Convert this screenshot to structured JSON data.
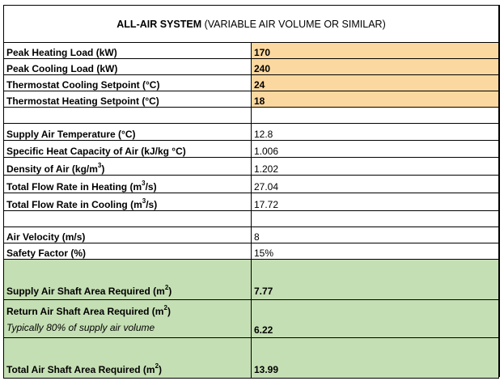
{
  "title_bold": "ALL-AIR SYSTEM",
  "title_rest": " (VARIABLE AIR VOLUME OR SIMILAR)",
  "inputs": [
    {
      "label": "Peak Heating Load (kW)",
      "value": "170"
    },
    {
      "label": "Peak Cooling Load (kW)",
      "value": "240"
    },
    {
      "label": "Thermostat Cooling Setpoint (°C)",
      "value": "24"
    },
    {
      "label": "Thermostat Heating Setpoint (°C)",
      "value": "18"
    }
  ],
  "params": [
    {
      "label": "Supply Air Temperature (°C)",
      "value": "12.8"
    },
    {
      "label": "Specific Heat Capacity of Air (kJ/kg °C)",
      "value": "1.006"
    },
    {
      "label_pre": "Density of Air (kg/m",
      "sup": "3",
      "label_post": ")",
      "value": "1.202"
    },
    {
      "label_pre": "Total Flow Rate in Heating (m",
      "sup": "3",
      "label_post": "/s)",
      "value": "27.04"
    },
    {
      "label_pre": "Total Flow Rate in Cooling (m",
      "sup": "3",
      "label_post": "/s)",
      "value": "17.72"
    }
  ],
  "velocity": {
    "label": "Air Velocity (m/s)",
    "value": "8"
  },
  "safety": {
    "label": "Safety Factor (%)",
    "value": "15%"
  },
  "results": {
    "supply": {
      "label_pre": "Supply Air Shaft Area Required (m",
      "sup": "2",
      "label_post": ")",
      "value": "7.77"
    },
    "return": {
      "label_pre": "Return Air Shaft Area Required (m",
      "sup": "2",
      "label_post": ")",
      "note": "Typically 80% of supply air volume",
      "value": "6.22"
    },
    "total": {
      "label_pre": "Total Air Shaft Area Required (m",
      "sup": "2",
      "label_post": ")",
      "value": "13.99"
    }
  }
}
